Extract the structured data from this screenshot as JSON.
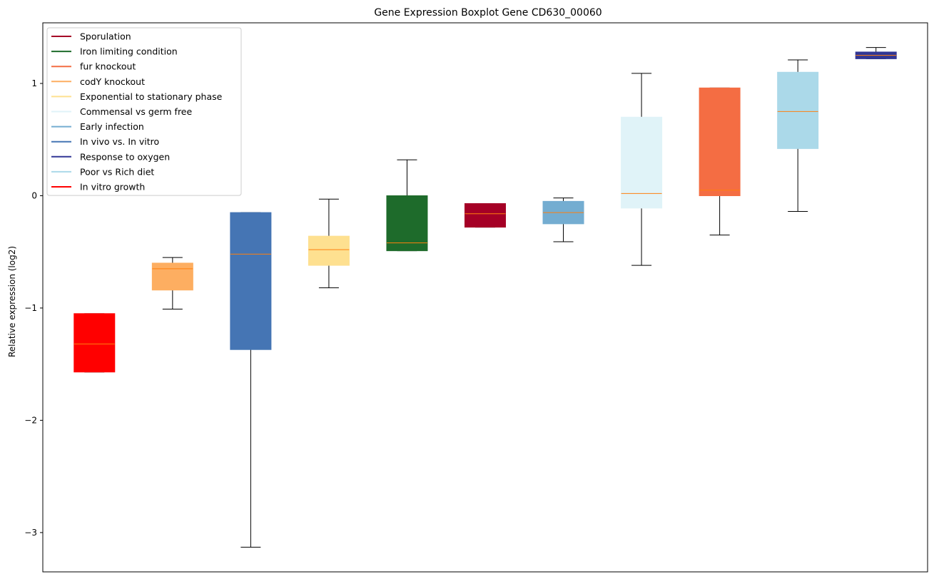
{
  "chart_data": {
    "type": "boxplot",
    "title": "Gene Expression Boxplot Gene CD630_00060",
    "xlabel": "",
    "ylabel": "Relative expression (log2)",
    "ylim": [
      -3.35,
      1.54
    ],
    "yticks": [
      1,
      0,
      -1,
      -2,
      -3
    ],
    "ytick_labels": [
      "1",
      "0",
      "−1",
      "−2",
      "−3"
    ],
    "legend_position": "top-left",
    "legend": [
      {
        "label": "Sporulation",
        "color": "#a50026"
      },
      {
        "label": "Iron limiting condition",
        "color": "#1e6b2b"
      },
      {
        "label": "fur knockout",
        "color": "#f46d43"
      },
      {
        "label": "codY knockout",
        "color": "#fdae61"
      },
      {
        "label": "Exponential to stationary phase",
        "color": "#fee090"
      },
      {
        "label": "Commensal vs germ free",
        "color": "#e0f3f8"
      },
      {
        "label": "Early infection",
        "color": "#74add1"
      },
      {
        "label": "In vivo vs. In vitro",
        "color": "#4575b4"
      },
      {
        "label": "Response to oxygen",
        "color": "#313695"
      },
      {
        "label": "Poor vs Rich diet",
        "color": "#abd9e9"
      },
      {
        "label": "In vitro growth",
        "color": "#ff0000"
      }
    ],
    "boxes": [
      {
        "group": "In vitro growth",
        "color": "#ff0000",
        "whisker_low": -1.57,
        "q1": -1.57,
        "median": -1.32,
        "q3": -1.05,
        "whisker_high": -1.05
      },
      {
        "group": "codY knockout",
        "color": "#fdae61",
        "whisker_low": -1.01,
        "q1": -0.84,
        "median": -0.65,
        "q3": -0.6,
        "whisker_high": -0.55
      },
      {
        "group": "In vivo vs. In vitro",
        "color": "#4575b4",
        "whisker_low": -3.13,
        "q1": -1.37,
        "median": -0.52,
        "q3": -0.15,
        "whisker_high": -0.15
      },
      {
        "group": "Exponential to stationary phase",
        "color": "#fee090",
        "whisker_low": -0.82,
        "q1": -0.62,
        "median": -0.48,
        "q3": -0.36,
        "whisker_high": -0.03
      },
      {
        "group": "Iron limiting condition",
        "color": "#1e6b2b",
        "whisker_low": -0.49,
        "q1": -0.49,
        "median": -0.42,
        "q3": 0.0,
        "whisker_high": 0.32
      },
      {
        "group": "Sporulation",
        "color": "#a50026",
        "whisker_low": -0.28,
        "q1": -0.28,
        "median": -0.16,
        "q3": -0.07,
        "whisker_high": -0.07
      },
      {
        "group": "Early infection",
        "color": "#74add1",
        "whisker_low": -0.41,
        "q1": -0.25,
        "median": -0.15,
        "q3": -0.05,
        "whisker_high": -0.02
      },
      {
        "group": "Commensal vs germ free",
        "color": "#e0f3f8",
        "whisker_low": -0.62,
        "q1": -0.11,
        "median": 0.02,
        "q3": 0.7,
        "whisker_high": 1.09
      },
      {
        "group": "fur knockout",
        "color": "#f46d43",
        "whisker_low": -0.35,
        "q1": 0.0,
        "median": 0.05,
        "q3": 0.96,
        "whisker_high": 0.96
      },
      {
        "group": "Poor vs Rich diet",
        "color": "#abd9e9",
        "whisker_low": -0.14,
        "q1": 0.42,
        "median": 0.75,
        "q3": 1.1,
        "whisker_high": 1.21
      },
      {
        "group": "Response to oxygen",
        "color": "#313695",
        "whisker_low": 1.22,
        "q1": 1.22,
        "median": 1.25,
        "q3": 1.28,
        "whisker_high": 1.32
      }
    ],
    "median_color": "#ff7f0e"
  }
}
